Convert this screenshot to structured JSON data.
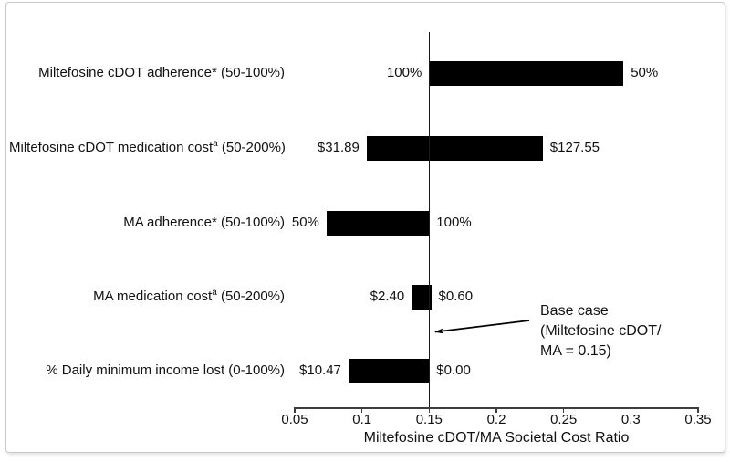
{
  "chart_data": {
    "type": "bar",
    "subtype": "tornado-sensitivity",
    "title": "",
    "xlabel": "Miltefosine cDOT/MA Societal Cost Ratio",
    "ylabel": "",
    "xlim": [
      0.05,
      0.35
    ],
    "x_ticks": [
      "0.05",
      "0.1",
      "0.15",
      "0.2",
      "0.25",
      "0.3",
      "0.35"
    ],
    "baseline": 0.15,
    "grid": false,
    "legend_position": "none",
    "bar_color": "#000000",
    "frame_border_color": "#c9c9c9",
    "bars": [
      {
        "label_pre": "Miltefosine cDOT adherence* (50-100%)",
        "label_sup": "",
        "label_post": "",
        "low_end": 0.15,
        "high_end": 0.2945,
        "left_value_label": "100%",
        "right_value_label": "50%"
      },
      {
        "label_pre": "Miltefosine cDOT medication cost",
        "label_sup": "a",
        "label_post": " (50-200%)",
        "low_end": 0.1035,
        "high_end": 0.2345,
        "left_value_label": "$31.89",
        "right_value_label": "$127.55"
      },
      {
        "label_pre": "MA adherence* (50-100%)",
        "label_sup": "",
        "label_post": "",
        "low_end": 0.0737,
        "high_end": 0.15,
        "left_value_label": "50%",
        "right_value_label": "100%"
      },
      {
        "label_pre": "MA medication cost",
        "label_sup": "a",
        "label_post": " (50-200%)",
        "low_end": 0.137,
        "high_end": 0.1515,
        "left_value_label": "$2.40",
        "right_value_label": "$0.60"
      },
      {
        "label_pre": "% Daily minimum income lost (0-100%)",
        "label_sup": "",
        "label_post": "",
        "low_end": 0.09,
        "high_end": 0.15,
        "left_value_label": "$10.47",
        "right_value_label": "$0.00"
      }
    ],
    "annotation": {
      "lines": [
        "Base case",
        "(Miltefosine cDOT/",
        "MA = 0.15)"
      ]
    }
  }
}
